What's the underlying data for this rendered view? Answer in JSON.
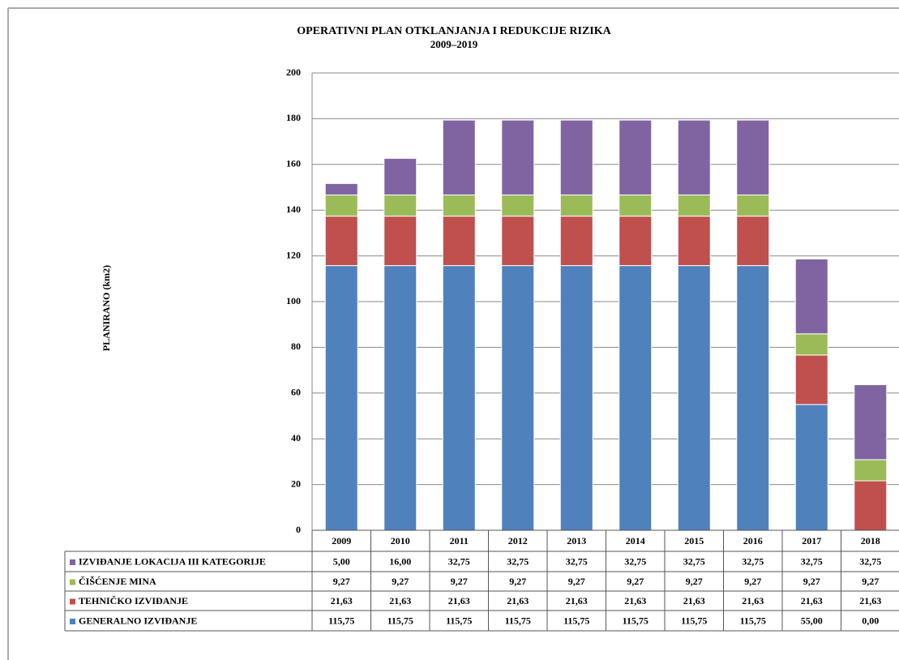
{
  "chart_data": {
    "type": "stacked_bar",
    "title": "OPERATIVNI PLAN OTKLANJANJA I REDUKCIJE RIZIKA",
    "subtitle": "2009–2019",
    "y_label": "PLANIRANO (km2)",
    "categories": [
      "2009",
      "2010",
      "2011",
      "2012",
      "2013",
      "2014",
      "2015",
      "2016",
      "2017",
      "2018"
    ],
    "ylim": [
      0,
      200
    ],
    "yticks": [
      0,
      20,
      40,
      60,
      80,
      100,
      120,
      140,
      160,
      180,
      200
    ],
    "grid": true,
    "series": [
      {
        "name": "GENERALNO IZVIĐANJE",
        "color": "#4f81bd",
        "values": [
          115.75,
          115.75,
          115.75,
          115.75,
          115.75,
          115.75,
          115.75,
          115.75,
          55.0,
          0.0
        ],
        "value_labels": [
          "115,75",
          "115,75",
          "115,75",
          "115,75",
          "115,75",
          "115,75",
          "115,75",
          "115,75",
          "55,00",
          "0,00"
        ]
      },
      {
        "name": "TEHNIČKO IZVIĐANJE",
        "color": "#c0504d",
        "values": [
          21.63,
          21.63,
          21.63,
          21.63,
          21.63,
          21.63,
          21.63,
          21.63,
          21.63,
          21.63
        ],
        "value_labels": [
          "21,63",
          "21,63",
          "21,63",
          "21,63",
          "21,63",
          "21,63",
          "21,63",
          "21,63",
          "21,63",
          "21,63"
        ]
      },
      {
        "name": "ČIŠĆENJE MINA",
        "color": "#9bbb59",
        "values": [
          9.27,
          9.27,
          9.27,
          9.27,
          9.27,
          9.27,
          9.27,
          9.27,
          9.27,
          9.27
        ],
        "value_labels": [
          "9,27",
          "9,27",
          "9,27",
          "9,27",
          "9,27",
          "9,27",
          "9,27",
          "9,27",
          "9,27",
          "9,27"
        ]
      },
      {
        "name": "IZVIĐANJE LOKACIJA III KATEGORIJE",
        "color": "#8064a2",
        "values": [
          5.0,
          16.0,
          32.75,
          32.75,
          32.75,
          32.75,
          32.75,
          32.75,
          32.75,
          32.75
        ],
        "value_labels": [
          "5,00",
          "16,00",
          "32,75",
          "32,75",
          "32,75",
          "32,75",
          "32,75",
          "32,75",
          "32,75",
          "32,75"
        ]
      }
    ]
  }
}
